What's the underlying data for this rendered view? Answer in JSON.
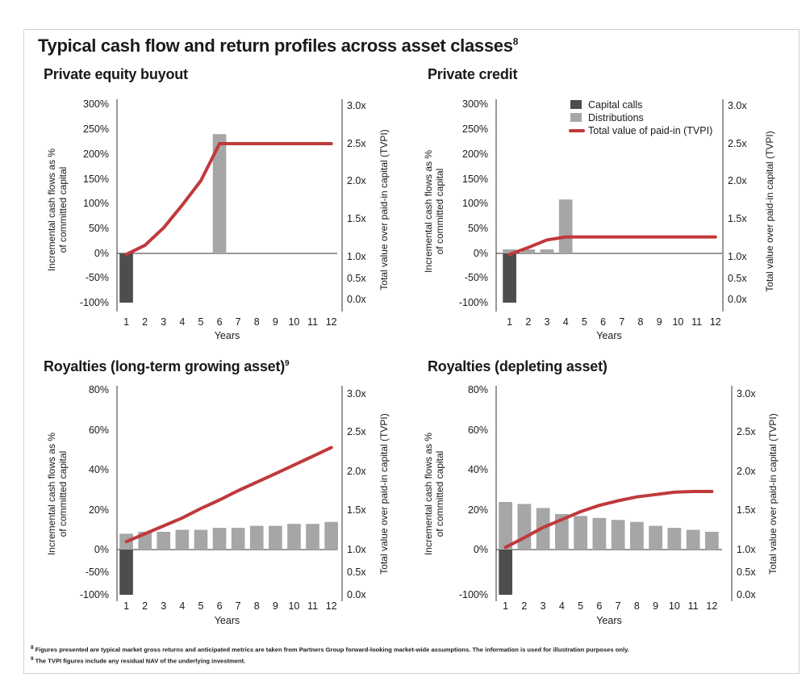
{
  "title": "Typical cash flow and return profiles across asset classes",
  "title_note": "8",
  "footnotes": [
    {
      "mark": "8",
      "text": "Figures presented are typical market gross returns and anticipated metrics are taken from Partners Group forward-looking market-wide assumptions. The  information is used for illustration purposes only."
    },
    {
      "mark": "9",
      "text": "The TVPI figures include any residual NAV of the underlying investment."
    }
  ],
  "colors": {
    "capital_calls": "#4d4d4d",
    "distributions": "#a6a6a6",
    "tvpi": "#c0393b"
  },
  "legend": [
    "Capital calls",
    "Distributions",
    "Total value of paid-in (TVPI)"
  ],
  "chart_data": [
    {
      "type": "bar",
      "title": "Private equity buyout",
      "title_note": "",
      "xlabel": "Years",
      "ylabel": "Incremental cash flows as % of committed capital",
      "ylabel_lines": [
        "Incremental cash flows as %",
        "of committed capital"
      ],
      "y2label": "Total value over paid-in capital (TVPI)",
      "categories": [
        1,
        2,
        3,
        4,
        5,
        6,
        7,
        8,
        9,
        10,
        11,
        12
      ],
      "y_ticks": [
        "300%",
        "250%",
        "200%",
        "150%",
        "100%",
        "50%",
        "0%",
        "-50%",
        "-100%"
      ],
      "y_range": [
        -100,
        300
      ],
      "y2_ticks": [
        "3.0x",
        "2.5x",
        "2.0x",
        "1.5x",
        "1.0x",
        "0.5x",
        "0.0x"
      ],
      "y2_range": [
        0,
        3
      ],
      "capital_calls": [
        -100,
        0,
        0,
        0,
        0,
        0,
        0,
        0,
        0,
        0,
        0,
        0
      ],
      "distributions": [
        0,
        0,
        0,
        0,
        0,
        240,
        0,
        0,
        0,
        0,
        0,
        0
      ],
      "tvpi": [
        1.03,
        1.15,
        1.38,
        1.68,
        2.0,
        2.5,
        2.5,
        2.5,
        2.5,
        2.5,
        2.5,
        2.5
      ],
      "legend": false
    },
    {
      "type": "bar",
      "title": "Private credit",
      "title_note": "",
      "xlabel": "Years",
      "ylabel": "Incremental cash flows as % of committed capital",
      "ylabel_lines": [
        "Incremental cash flows as %",
        "of committed capital"
      ],
      "y2label": "Total value over paid-in capital (TVPI)",
      "categories": [
        1,
        2,
        3,
        4,
        5,
        6,
        7,
        8,
        9,
        10,
        11,
        12
      ],
      "y_ticks": [
        "300%",
        "250%",
        "200%",
        "150%",
        "100%",
        "50%",
        "0%",
        "-50%",
        "-100%"
      ],
      "y_range": [
        -100,
        300
      ],
      "y2_ticks": [
        "3.0x",
        "2.5x",
        "2.0x",
        "1.5x",
        "1.0x",
        "0.5x",
        "0.0x"
      ],
      "y2_range": [
        0,
        3
      ],
      "capital_calls": [
        -100,
        0,
        0,
        0,
        0,
        0,
        0,
        0,
        0,
        0,
        0,
        0
      ],
      "distributions": [
        8,
        8,
        8,
        108,
        0,
        0,
        0,
        0,
        0,
        0,
        0,
        0
      ],
      "tvpi": [
        1.03,
        1.12,
        1.22,
        1.26,
        1.26,
        1.26,
        1.26,
        1.26,
        1.26,
        1.26,
        1.26,
        1.26
      ],
      "legend": true
    },
    {
      "type": "bar",
      "title": "Royalties (long-term growing asset)",
      "title_note": "9",
      "xlabel": "Years",
      "ylabel": "Incremental cash flows as % of committed capital",
      "ylabel_lines": [
        "Incremental cash flows as %",
        "of committed capital"
      ],
      "y2label": "Total value over paid-in capital (TVPI)",
      "categories": [
        1,
        2,
        3,
        4,
        5,
        6,
        7,
        8,
        9,
        10,
        11,
        12
      ],
      "y_ticks": [
        "80%",
        "60%",
        "40%",
        "20%",
        "0%",
        "-50%",
        "-100%"
      ],
      "y_range": [
        -100,
        80
      ],
      "y2_ticks": [
        "3.0x",
        "2.5x",
        "2.0x",
        "1.5x",
        "1.0x",
        "0.5x",
        "0.0x"
      ],
      "y2_range": [
        0,
        3
      ],
      "capital_calls": [
        -100,
        0,
        0,
        0,
        0,
        0,
        0,
        0,
        0,
        0,
        0,
        0
      ],
      "distributions": [
        8,
        9,
        9,
        10,
        10,
        11,
        11,
        12,
        12,
        13,
        13,
        14
      ],
      "tvpi": [
        1.1,
        1.2,
        1.3,
        1.4,
        1.52,
        1.63,
        1.75,
        1.86,
        1.97,
        2.08,
        2.19,
        2.3
      ],
      "legend": false
    },
    {
      "type": "bar",
      "title": "Royalties (depleting asset)",
      "title_note": "",
      "xlabel": "Years",
      "ylabel": "Incremental cash flows as % of committed capital",
      "ylabel_lines": [
        "Incremental cash flows as %",
        "of committed capital"
      ],
      "y2label": "Total value over paid-in capital (TVPI)",
      "categories": [
        1,
        2,
        3,
        4,
        5,
        6,
        7,
        8,
        9,
        10,
        11,
        12
      ],
      "y_ticks": [
        "80%",
        "60%",
        "40%",
        "20%",
        "0%",
        "-100%"
      ],
      "y_range": [
        -100,
        80
      ],
      "y2_ticks": [
        "3.0x",
        "2.5x",
        "2.0x",
        "1.5x",
        "1.0x",
        "0.5x",
        "0.0x"
      ],
      "y2_range": [
        0,
        3
      ],
      "capital_calls": [
        -100,
        0,
        0,
        0,
        0,
        0,
        0,
        0,
        0,
        0,
        0,
        0
      ],
      "distributions": [
        24,
        23,
        21,
        18,
        17,
        16,
        15,
        14,
        12,
        11,
        10,
        9
      ],
      "tvpi": [
        1.03,
        1.15,
        1.28,
        1.38,
        1.48,
        1.56,
        1.62,
        1.67,
        1.7,
        1.73,
        1.74,
        1.74
      ],
      "legend": false
    }
  ]
}
